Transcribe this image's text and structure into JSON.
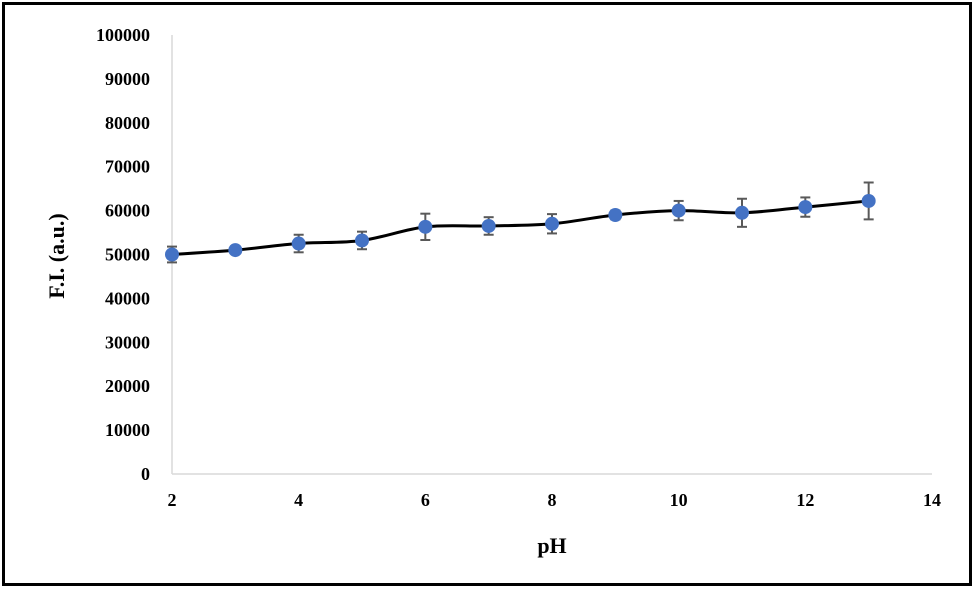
{
  "chart_data": {
    "type": "line",
    "title": "",
    "xlabel": "pH",
    "ylabel": "F.I. (a.u.)",
    "xlim": [
      2,
      14
    ],
    "ylim": [
      0,
      100000
    ],
    "x_ticks": [
      2,
      4,
      6,
      8,
      10,
      12,
      14
    ],
    "y_ticks": [
      0,
      10000,
      20000,
      30000,
      40000,
      50000,
      60000,
      70000,
      80000,
      90000,
      100000
    ],
    "grid": false,
    "legend": "none",
    "line_color": "#000000",
    "marker_color": "#4472C4",
    "errorbar_color": "#595959",
    "series": [
      {
        "x": [
          2,
          3,
          4,
          5,
          6,
          7,
          8,
          9,
          10,
          11,
          12,
          13
        ],
        "y": [
          50000,
          51000,
          52500,
          53200,
          56300,
          56500,
          57000,
          59000,
          60000,
          59500,
          60800,
          62200
        ],
        "error": [
          1800,
          800,
          2000,
          2000,
          3000,
          2000,
          2200,
          1000,
          2200,
          3200,
          2200,
          4200
        ]
      }
    ]
  }
}
